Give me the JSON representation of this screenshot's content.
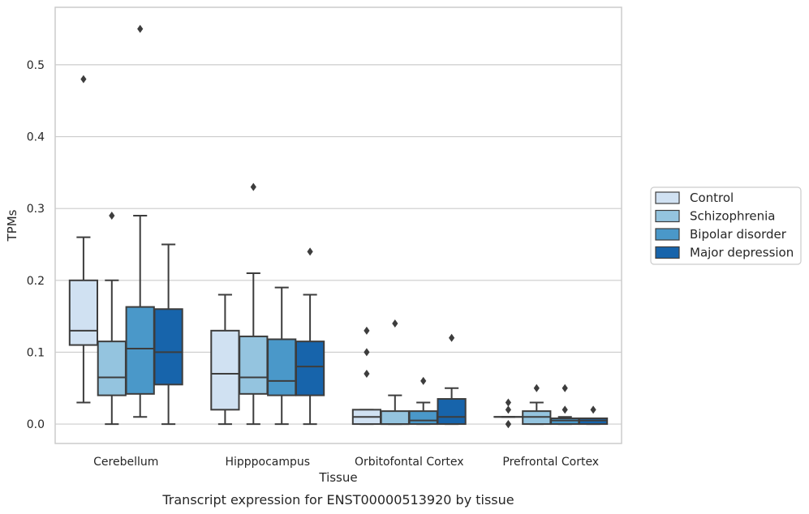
{
  "chart_data": {
    "type": "box",
    "title": "",
    "caption": "Transcript expression for ENST00000513920 by tissue",
    "xlabel": "Tissue",
    "ylabel": "TPMs",
    "ylim": [
      -0.027,
      0.58
    ],
    "yticks": [
      0.0,
      0.1,
      0.2,
      0.3,
      0.4,
      0.5
    ],
    "ytick_labels": [
      "0.0",
      "0.1",
      "0.2",
      "0.3",
      "0.4",
      "0.5"
    ],
    "grid": "horizontal",
    "legend_position": "right",
    "categories": [
      "Cerebellum",
      "Hipppocampus",
      "Orbitofontal Cortex",
      "Prefrontal Cortex"
    ],
    "series": [
      {
        "name": "Control",
        "color": "#d0e1f2",
        "boxes": [
          {
            "whislo": 0.03,
            "q1": 0.11,
            "med": 0.13,
            "q3": 0.2,
            "whishi": 0.26,
            "fliers": [
              0.48
            ]
          },
          {
            "whislo": 0.0,
            "q1": 0.02,
            "med": 0.07,
            "q3": 0.13,
            "whishi": 0.18,
            "fliers": []
          },
          {
            "whislo": 0.0,
            "q1": 0.0,
            "med": 0.01,
            "q3": 0.02,
            "whishi": 0.02,
            "fliers": [
              0.07,
              0.1,
              0.13
            ]
          },
          {
            "whislo": 0.01,
            "q1": 0.01,
            "med": 0.01,
            "q3": 0.01,
            "whishi": 0.01,
            "fliers": [
              0.0,
              0.0,
              0.02,
              0.03
            ]
          }
        ]
      },
      {
        "name": "Schizophrenia",
        "color": "#94c4df",
        "boxes": [
          {
            "whislo": 0.0,
            "q1": 0.04,
            "med": 0.065,
            "q3": 0.115,
            "whishi": 0.2,
            "fliers": [
              0.29
            ]
          },
          {
            "whislo": 0.0,
            "q1": 0.042,
            "med": 0.065,
            "q3": 0.122,
            "whishi": 0.21,
            "fliers": [
              0.33
            ]
          },
          {
            "whislo": 0.0,
            "q1": 0.0,
            "med": 0.0,
            "q3": 0.018,
            "whishi": 0.04,
            "fliers": [
              0.14
            ]
          },
          {
            "whislo": 0.0,
            "q1": 0.0,
            "med": 0.01,
            "q3": 0.018,
            "whishi": 0.03,
            "fliers": [
              0.05
            ]
          }
        ]
      },
      {
        "name": "Bipolar disorder",
        "color": "#4a98c9",
        "boxes": [
          {
            "whislo": 0.01,
            "q1": 0.042,
            "med": 0.105,
            "q3": 0.163,
            "whishi": 0.29,
            "fliers": [
              0.55
            ]
          },
          {
            "whislo": 0.0,
            "q1": 0.04,
            "med": 0.06,
            "q3": 0.118,
            "whishi": 0.19,
            "fliers": []
          },
          {
            "whislo": 0.0,
            "q1": 0.0,
            "med": 0.005,
            "q3": 0.018,
            "whishi": 0.03,
            "fliers": [
              0.06
            ]
          },
          {
            "whislo": 0.0,
            "q1": 0.0,
            "med": 0.005,
            "q3": 0.008,
            "whishi": 0.01,
            "fliers": [
              0.02,
              0.05
            ]
          }
        ]
      },
      {
        "name": "Major depression",
        "color": "#1764ab",
        "boxes": [
          {
            "whislo": 0.0,
            "q1": 0.055,
            "med": 0.1,
            "q3": 0.16,
            "whishi": 0.25,
            "fliers": []
          },
          {
            "whislo": 0.0,
            "q1": 0.04,
            "med": 0.08,
            "q3": 0.115,
            "whishi": 0.18,
            "fliers": [
              0.24
            ]
          },
          {
            "whislo": 0.0,
            "q1": 0.0,
            "med": 0.01,
            "q3": 0.035,
            "whishi": 0.05,
            "fliers": [
              0.12
            ]
          },
          {
            "whislo": 0.0,
            "q1": 0.0,
            "med": 0.005,
            "q3": 0.008,
            "whishi": 0.008,
            "fliers": [
              0.02
            ]
          }
        ]
      }
    ]
  }
}
